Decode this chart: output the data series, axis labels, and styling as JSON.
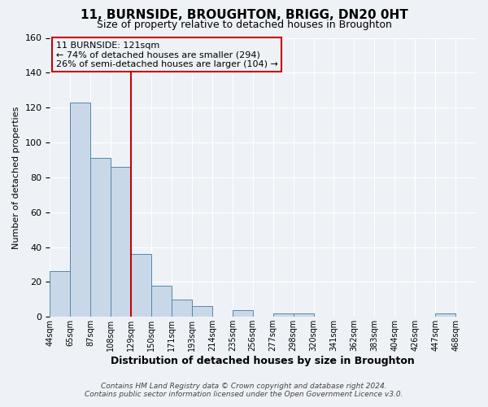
{
  "title": "11, BURNSIDE, BROUGHTON, BRIGG, DN20 0HT",
  "subtitle": "Size of property relative to detached houses in Broughton",
  "xlabel": "Distribution of detached houses by size in Broughton",
  "ylabel": "Number of detached properties",
  "bin_labels": [
    "44sqm",
    "65sqm",
    "87sqm",
    "108sqm",
    "129sqm",
    "150sqm",
    "171sqm",
    "193sqm",
    "214sqm",
    "235sqm",
    "256sqm",
    "277sqm",
    "298sqm",
    "320sqm",
    "341sqm",
    "362sqm",
    "383sqm",
    "404sqm",
    "426sqm",
    "447sqm",
    "468sqm"
  ],
  "bar_values": [
    26,
    123,
    91,
    86,
    36,
    18,
    10,
    6,
    0,
    4,
    0,
    2,
    2,
    0,
    0,
    0,
    0,
    0,
    0,
    2,
    0
  ],
  "bar_color": "#c8d8e8",
  "bar_edge_color": "#5588aa",
  "vline_color": "#cc0000",
  "ylim": [
    0,
    160
  ],
  "yticks": [
    0,
    20,
    40,
    60,
    80,
    100,
    120,
    140,
    160
  ],
  "annotation_title": "11 BURNSIDE: 121sqm",
  "annotation_line1": "← 74% of detached houses are smaller (294)",
  "annotation_line2": "26% of semi-detached houses are larger (104) →",
  "annotation_box_color": "#cc0000",
  "footer_line1": "Contains HM Land Registry data © Crown copyright and database right 2024.",
  "footer_line2": "Contains public sector information licensed under the Open Government Licence v3.0.",
  "background_color": "#eef2f7",
  "grid_color": "#ffffff",
  "bin_width": 21,
  "vline_bin_index": 4
}
